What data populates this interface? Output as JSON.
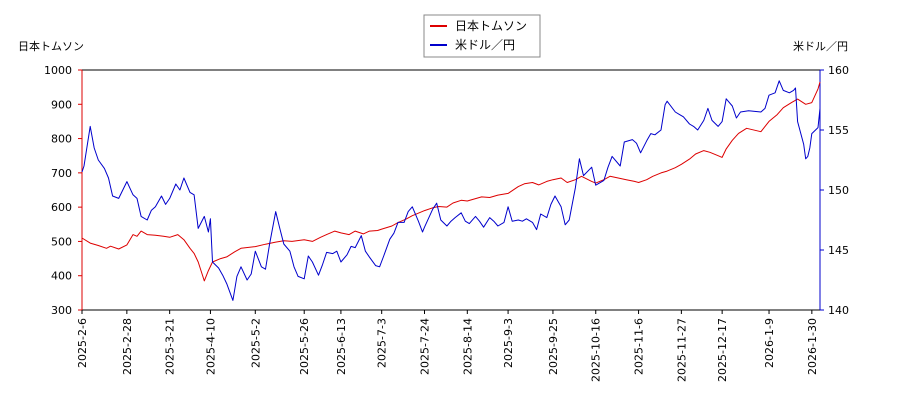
{
  "chart_data": {
    "type": "line",
    "left_axis_label": "日本トムソン",
    "right_axis_label": "米ドル／円",
    "legend": {
      "placement": "top-center",
      "entries": [
        {
          "name": "日本トムソン",
          "color": "#dd0000"
        },
        {
          "name": "米ドル／円",
          "color": "#0000cc"
        }
      ]
    },
    "grid": false,
    "y_left": {
      "min": 300,
      "max": 1000,
      "ticks": [
        300,
        400,
        500,
        600,
        700,
        800,
        900,
        1000
      ],
      "color": "#dd0000"
    },
    "y_right": {
      "min": 140,
      "max": 160,
      "ticks": [
        140,
        145,
        150,
        155,
        160
      ],
      "color": "#0000cc"
    },
    "x": {
      "min": "2025-02-06",
      "max": "2026-02-03",
      "ticks": [
        "2025-2-6",
        "2025-2-28",
        "2025-3-21",
        "2025-4-10",
        "2025-5-2",
        "2025-5-26",
        "2025-6-13",
        "2025-7-3",
        "2025-7-24",
        "2025-8-14",
        "2025-9-3",
        "2025-9-25",
        "2025-10-16",
        "2025-11-6",
        "2025-11-27",
        "2025-12-17",
        "2026-1-9",
        "2026-1-30"
      ]
    },
    "series": [
      {
        "name": "日本トムソン",
        "axis": "left",
        "color": "#dd0000",
        "points": [
          [
            "2025-02-06",
            510
          ],
          [
            "2025-02-10",
            495
          ],
          [
            "2025-02-14",
            488
          ],
          [
            "2025-02-18",
            480
          ],
          [
            "2025-02-20",
            486
          ],
          [
            "2025-02-24",
            478
          ],
          [
            "2025-02-28",
            490
          ],
          [
            "2025-03-03",
            520
          ],
          [
            "2025-03-05",
            515
          ],
          [
            "2025-03-07",
            530
          ],
          [
            "2025-03-10",
            520
          ],
          [
            "2025-03-14",
            518
          ],
          [
            "2025-03-18",
            515
          ],
          [
            "2025-03-21",
            512
          ],
          [
            "2025-03-25",
            520
          ],
          [
            "2025-03-28",
            505
          ],
          [
            "2025-03-31",
            480
          ],
          [
            "2025-04-02",
            465
          ],
          [
            "2025-04-04",
            440
          ],
          [
            "2025-04-07",
            385
          ],
          [
            "2025-04-09",
            415
          ],
          [
            "2025-04-11",
            440
          ],
          [
            "2025-04-15",
            450
          ],
          [
            "2025-04-18",
            455
          ],
          [
            "2025-04-22",
            470
          ],
          [
            "2025-04-25",
            480
          ],
          [
            "2025-05-02",
            485
          ],
          [
            "2025-05-07",
            492
          ],
          [
            "2025-05-12",
            498
          ],
          [
            "2025-05-16",
            502
          ],
          [
            "2025-05-20",
            500
          ],
          [
            "2025-05-26",
            505
          ],
          [
            "2025-05-30",
            500
          ],
          [
            "2025-06-03",
            512
          ],
          [
            "2025-06-06",
            520
          ],
          [
            "2025-06-10",
            530
          ],
          [
            "2025-06-13",
            525
          ],
          [
            "2025-06-17",
            520
          ],
          [
            "2025-06-20",
            530
          ],
          [
            "2025-06-24",
            522
          ],
          [
            "2025-06-27",
            530
          ],
          [
            "2025-07-01",
            532
          ],
          [
            "2025-07-03",
            536
          ],
          [
            "2025-07-08",
            545
          ],
          [
            "2025-07-11",
            555
          ],
          [
            "2025-07-15",
            565
          ],
          [
            "2025-07-18",
            575
          ],
          [
            "2025-07-22",
            585
          ],
          [
            "2025-07-24",
            590
          ],
          [
            "2025-07-28",
            598
          ],
          [
            "2025-07-31",
            602
          ],
          [
            "2025-08-04",
            600
          ],
          [
            "2025-08-07",
            612
          ],
          [
            "2025-08-11",
            620
          ],
          [
            "2025-08-14",
            618
          ],
          [
            "2025-08-18",
            625
          ],
          [
            "2025-08-21",
            630
          ],
          [
            "2025-08-25",
            628
          ],
          [
            "2025-08-29",
            635
          ],
          [
            "2025-09-03",
            640
          ],
          [
            "2025-09-08",
            660
          ],
          [
            "2025-09-11",
            668
          ],
          [
            "2025-09-15",
            672
          ],
          [
            "2025-09-18",
            665
          ],
          [
            "2025-09-22",
            675
          ],
          [
            "2025-09-25",
            680
          ],
          [
            "2025-09-29",
            685
          ],
          [
            "2025-10-02",
            672
          ],
          [
            "2025-10-06",
            680
          ],
          [
            "2025-10-09",
            690
          ],
          [
            "2025-10-14",
            675
          ],
          [
            "2025-10-16",
            670
          ],
          [
            "2025-10-20",
            680
          ],
          [
            "2025-10-23",
            690
          ],
          [
            "2025-10-27",
            685
          ],
          [
            "2025-10-31",
            680
          ],
          [
            "2025-11-04",
            675
          ],
          [
            "2025-11-06",
            672
          ],
          [
            "2025-11-10",
            680
          ],
          [
            "2025-11-13",
            690
          ],
          [
            "2025-11-17",
            700
          ],
          [
            "2025-11-20",
            705
          ],
          [
            "2025-11-24",
            715
          ],
          [
            "2025-11-27",
            725
          ],
          [
            "2025-12-01",
            740
          ],
          [
            "2025-12-04",
            755
          ],
          [
            "2025-12-08",
            765
          ],
          [
            "2025-12-11",
            760
          ],
          [
            "2025-12-15",
            750
          ],
          [
            "2025-12-17",
            745
          ],
          [
            "2025-12-19",
            770
          ],
          [
            "2025-12-22",
            795
          ],
          [
            "2025-12-25",
            815
          ],
          [
            "2025-12-29",
            830
          ],
          [
            "2026-01-05",
            820
          ],
          [
            "2026-01-09",
            850
          ],
          [
            "2026-01-13",
            870
          ],
          [
            "2026-01-16",
            890
          ],
          [
            "2026-01-20",
            905
          ],
          [
            "2026-01-23",
            915
          ],
          [
            "2026-01-27",
            900
          ],
          [
            "2026-01-30",
            905
          ],
          [
            "2026-02-02",
            945
          ],
          [
            "2026-02-03",
            965
          ]
        ]
      },
      {
        "name": "米ドル／円",
        "axis": "right",
        "color": "#0000cc",
        "points": [
          [
            "2025-02-06",
            151.5
          ],
          [
            "2025-02-07",
            152.0
          ],
          [
            "2025-02-10",
            155.3
          ],
          [
            "2025-02-12",
            153.5
          ],
          [
            "2025-02-14",
            152.5
          ],
          [
            "2025-02-17",
            151.8
          ],
          [
            "2025-02-19",
            151.0
          ],
          [
            "2025-02-21",
            149.5
          ],
          [
            "2025-02-24",
            149.3
          ],
          [
            "2025-02-26",
            150.0
          ],
          [
            "2025-02-28",
            150.7
          ],
          [
            "2025-03-03",
            149.6
          ],
          [
            "2025-03-05",
            149.3
          ],
          [
            "2025-03-07",
            147.8
          ],
          [
            "2025-03-10",
            147.5
          ],
          [
            "2025-03-12",
            148.3
          ],
          [
            "2025-03-14",
            148.6
          ],
          [
            "2025-03-17",
            149.5
          ],
          [
            "2025-03-19",
            148.8
          ],
          [
            "2025-03-21",
            149.3
          ],
          [
            "2025-03-24",
            150.5
          ],
          [
            "2025-03-26",
            150.0
          ],
          [
            "2025-03-28",
            151.0
          ],
          [
            "2025-03-31",
            149.8
          ],
          [
            "2025-04-02",
            149.6
          ],
          [
            "2025-04-04",
            146.8
          ],
          [
            "2025-04-07",
            147.8
          ],
          [
            "2025-04-09",
            146.5
          ],
          [
            "2025-04-10",
            147.6
          ],
          [
            "2025-04-11",
            144.0
          ],
          [
            "2025-04-14",
            143.5
          ],
          [
            "2025-04-16",
            142.9
          ],
          [
            "2025-04-18",
            142.2
          ],
          [
            "2025-04-21",
            140.8
          ],
          [
            "2025-04-23",
            142.8
          ],
          [
            "2025-04-25",
            143.6
          ],
          [
            "2025-04-28",
            142.5
          ],
          [
            "2025-04-30",
            143.0
          ],
          [
            "2025-05-02",
            144.9
          ],
          [
            "2025-05-05",
            143.6
          ],
          [
            "2025-05-07",
            143.4
          ],
          [
            "2025-05-09",
            145.5
          ],
          [
            "2025-05-12",
            148.2
          ],
          [
            "2025-05-14",
            146.8
          ],
          [
            "2025-05-16",
            145.5
          ],
          [
            "2025-05-19",
            144.9
          ],
          [
            "2025-05-21",
            143.6
          ],
          [
            "2025-05-23",
            142.8
          ],
          [
            "2025-05-26",
            142.6
          ],
          [
            "2025-05-28",
            144.5
          ],
          [
            "2025-05-30",
            144.0
          ],
          [
            "2025-06-02",
            142.9
          ],
          [
            "2025-06-04",
            143.8
          ],
          [
            "2025-06-06",
            144.8
          ],
          [
            "2025-06-09",
            144.7
          ],
          [
            "2025-06-11",
            144.9
          ],
          [
            "2025-06-13",
            144.0
          ],
          [
            "2025-06-16",
            144.6
          ],
          [
            "2025-06-18",
            145.3
          ],
          [
            "2025-06-20",
            145.2
          ],
          [
            "2025-06-23",
            146.2
          ],
          [
            "2025-06-25",
            144.9
          ],
          [
            "2025-06-27",
            144.4
          ],
          [
            "2025-06-30",
            143.7
          ],
          [
            "2025-07-02",
            143.6
          ],
          [
            "2025-07-04",
            144.5
          ],
          [
            "2025-07-07",
            145.9
          ],
          [
            "2025-07-09",
            146.4
          ],
          [
            "2025-07-11",
            147.3
          ],
          [
            "2025-07-14",
            147.3
          ],
          [
            "2025-07-16",
            148.2
          ],
          [
            "2025-07-18",
            148.6
          ],
          [
            "2025-07-21",
            147.4
          ],
          [
            "2025-07-23",
            146.5
          ],
          [
            "2025-07-24",
            146.9
          ],
          [
            "2025-07-28",
            148.4
          ],
          [
            "2025-07-30",
            148.9
          ],
          [
            "2025-08-01",
            147.5
          ],
          [
            "2025-08-04",
            147.0
          ],
          [
            "2025-08-06",
            147.4
          ],
          [
            "2025-08-08",
            147.7
          ],
          [
            "2025-08-11",
            148.1
          ],
          [
            "2025-08-13",
            147.4
          ],
          [
            "2025-08-15",
            147.2
          ],
          [
            "2025-08-18",
            147.8
          ],
          [
            "2025-08-20",
            147.4
          ],
          [
            "2025-08-22",
            146.9
          ],
          [
            "2025-08-25",
            147.7
          ],
          [
            "2025-08-27",
            147.4
          ],
          [
            "2025-08-29",
            147.0
          ],
          [
            "2025-09-01",
            147.3
          ],
          [
            "2025-09-03",
            148.6
          ],
          [
            "2025-09-05",
            147.4
          ],
          [
            "2025-09-08",
            147.5
          ],
          [
            "2025-09-10",
            147.4
          ],
          [
            "2025-09-12",
            147.6
          ],
          [
            "2025-09-15",
            147.3
          ],
          [
            "2025-09-17",
            146.7
          ],
          [
            "2025-09-19",
            148.0
          ],
          [
            "2025-09-22",
            147.7
          ],
          [
            "2025-09-24",
            148.8
          ],
          [
            "2025-09-26",
            149.5
          ],
          [
            "2025-09-29",
            148.6
          ],
          [
            "2025-10-01",
            147.1
          ],
          [
            "2025-10-03",
            147.5
          ],
          [
            "2025-10-06",
            150.2
          ],
          [
            "2025-10-08",
            152.6
          ],
          [
            "2025-10-10",
            151.2
          ],
          [
            "2025-10-14",
            151.9
          ],
          [
            "2025-10-16",
            150.4
          ],
          [
            "2025-10-20",
            150.8
          ],
          [
            "2025-10-22",
            151.9
          ],
          [
            "2025-10-24",
            152.8
          ],
          [
            "2025-10-28",
            152.0
          ],
          [
            "2025-10-30",
            154.0
          ],
          [
            "2025-11-03",
            154.2
          ],
          [
            "2025-11-05",
            153.9
          ],
          [
            "2025-11-07",
            153.1
          ],
          [
            "2025-11-10",
            154.1
          ],
          [
            "2025-11-12",
            154.7
          ],
          [
            "2025-11-14",
            154.6
          ],
          [
            "2025-11-17",
            155.0
          ],
          [
            "2025-11-19",
            157.1
          ],
          [
            "2025-11-20",
            157.4
          ],
          [
            "2025-11-24",
            156.5
          ],
          [
            "2025-11-26",
            156.3
          ],
          [
            "2025-11-28",
            156.1
          ],
          [
            "2025-12-01",
            155.5
          ],
          [
            "2025-12-03",
            155.3
          ],
          [
            "2025-12-05",
            155.0
          ],
          [
            "2025-12-08",
            155.8
          ],
          [
            "2025-12-10",
            156.8
          ],
          [
            "2025-12-12",
            155.8
          ],
          [
            "2025-12-15",
            155.3
          ],
          [
            "2025-12-17",
            155.7
          ],
          [
            "2025-12-19",
            157.6
          ],
          [
            "2025-12-22",
            157.0
          ],
          [
            "2025-12-24",
            156.0
          ],
          [
            "2025-12-26",
            156.5
          ],
          [
            "2025-12-30",
            156.6
          ],
          [
            "2026-01-05",
            156.5
          ],
          [
            "2026-01-07",
            156.8
          ],
          [
            "2026-01-09",
            157.9
          ],
          [
            "2026-01-12",
            158.1
          ],
          [
            "2026-01-14",
            159.1
          ],
          [
            "2026-01-16",
            158.3
          ],
          [
            "2026-01-19",
            158.1
          ],
          [
            "2026-01-21",
            158.3
          ],
          [
            "2026-01-22",
            158.5
          ],
          [
            "2026-01-23",
            155.7
          ],
          [
            "2026-01-26",
            153.8
          ],
          [
            "2026-01-27",
            152.6
          ],
          [
            "2026-01-28",
            152.8
          ],
          [
            "2026-01-29",
            153.5
          ],
          [
            "2026-01-30",
            154.7
          ],
          [
            "2026-02-02",
            155.2
          ],
          [
            "2026-02-03",
            156.8
          ]
        ]
      }
    ]
  }
}
